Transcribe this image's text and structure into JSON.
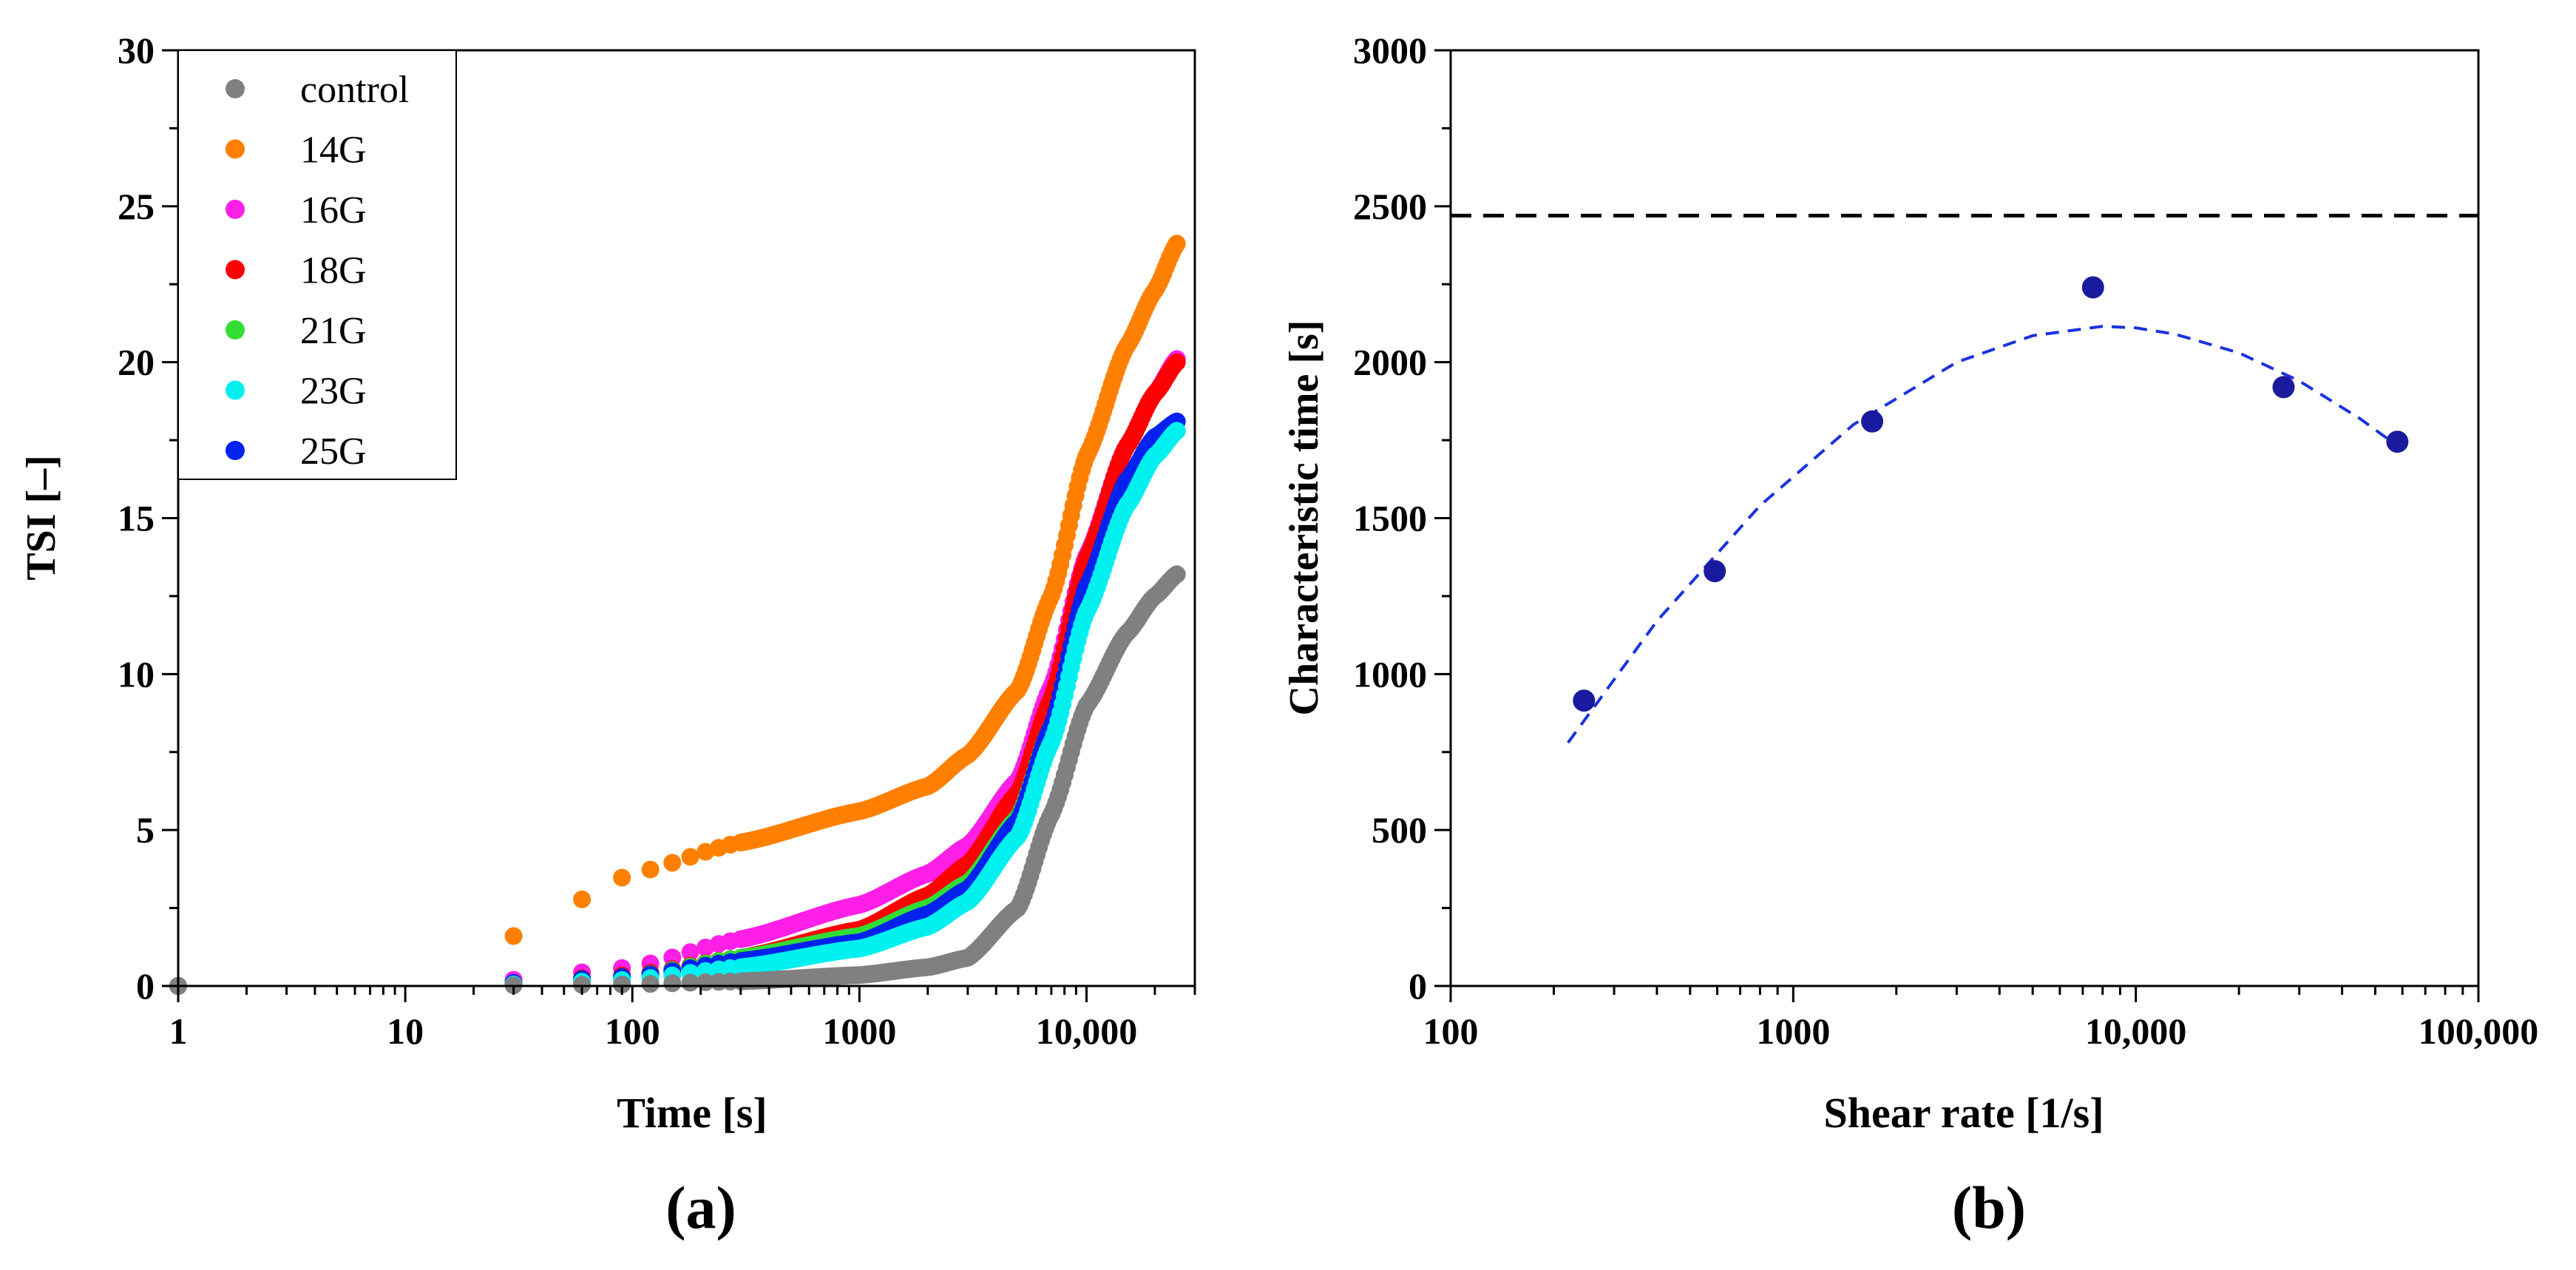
{
  "chart_data": [
    {
      "panel_label": "(a)",
      "type": "scatter",
      "xlabel": "Time [s]",
      "ylabel": "TSI [–]",
      "xscale": "log",
      "xlim": [
        1,
        30000
      ],
      "ylim": [
        0,
        30
      ],
      "x_ticks": [
        1,
        10,
        100,
        1000,
        10000
      ],
      "x_tick_labels": [
        "1",
        "10",
        "100",
        "1000",
        "10,000"
      ],
      "y_ticks": [
        0,
        5,
        10,
        15,
        20,
        25,
        30
      ],
      "y_tick_labels": [
        "0",
        "5",
        "10",
        "15",
        "20",
        "25",
        "30"
      ],
      "legend_position": "top-left",
      "grid": false,
      "curve_anchor_x": [
        1,
        30,
        100,
        300,
        1000,
        2000,
        3000,
        5000,
        7000,
        10000,
        15000,
        20000,
        25000
      ],
      "series": [
        {
          "name": "control",
          "color": "#808080",
          "anchors_y": [
            0,
            0.02,
            0.05,
            0.15,
            0.35,
            0.6,
            0.9,
            2.5,
            5.5,
            9.0,
            11.3,
            12.5,
            13.2
          ]
        },
        {
          "name": "14G",
          "color": "#FF8000",
          "anchors_y": [
            0,
            1.6,
            3.6,
            4.6,
            5.6,
            6.4,
            7.4,
            9.5,
            12.5,
            17.0,
            20.5,
            22.3,
            23.8
          ]
        },
        {
          "name": "16G",
          "color": "#FF1FE6",
          "anchors_y": [
            0,
            0.2,
            0.6,
            1.5,
            2.6,
            3.6,
            4.5,
            6.6,
            9.6,
            13.8,
            17.3,
            19.0,
            20.1
          ]
        },
        {
          "name": "18G",
          "color": "#FF0000",
          "anchors_y": [
            0,
            0.1,
            0.35,
            0.9,
            1.8,
            2.9,
            3.9,
            6.2,
            9.2,
            13.7,
            17.3,
            19.0,
            20.0
          ]
        },
        {
          "name": "21G",
          "color": "#33DD33",
          "anchors_y": [
            0,
            0.1,
            0.3,
            0.9,
            1.6,
            2.5,
            3.3,
            5.4,
            8.3,
            12.5,
            15.6,
            17.0,
            17.8
          ]
        },
        {
          "name": "23G",
          "color": "#00F0F0",
          "anchors_y": [
            0,
            0.05,
            0.2,
            0.6,
            1.2,
            1.9,
            2.7,
            4.8,
            7.8,
            12.0,
            15.4,
            17.0,
            17.8
          ]
        },
        {
          "name": "25G",
          "color": "#0022EE",
          "anchors_y": [
            0,
            0.1,
            0.3,
            0.8,
            1.4,
            2.3,
            3.1,
            5.3,
            8.3,
            12.8,
            16.2,
            17.6,
            18.1
          ]
        }
      ]
    },
    {
      "panel_label": "(b)",
      "type": "scatter",
      "xlabel": "Shear rate [1/s]",
      "ylabel": "Characteristic time [s]",
      "xscale": "log",
      "xlim": [
        100,
        100000
      ],
      "ylim": [
        0,
        3000
      ],
      "x_ticks": [
        100,
        1000,
        10000,
        100000
      ],
      "x_tick_labels": [
        "100",
        "1000",
        "10,000",
        "100,000"
      ],
      "y_ticks": [
        0,
        500,
        1000,
        1500,
        2000,
        2500,
        3000
      ],
      "y_tick_labels": [
        "0",
        "500",
        "1000",
        "1500",
        "2000",
        "2500",
        "3000"
      ],
      "grid": false,
      "points": {
        "color": "#1A1A9E",
        "x": [
          245,
          590,
          1700,
          7500,
          27000,
          58000
        ],
        "y": [
          915,
          1330,
          1810,
          2240,
          1920,
          1745
        ]
      },
      "reference_line": {
        "y": 2470,
        "style": "dashed",
        "color": "#000000"
      },
      "fit_curve": {
        "style": "dashed",
        "color": "#1A33DD",
        "x": [
          220,
          400,
          800,
          1500,
          3000,
          5000,
          8000,
          10000,
          13000,
          20000,
          30000,
          45000,
          60000
        ],
        "y": [
          780,
          1170,
          1540,
          1800,
          2000,
          2085,
          2115,
          2110,
          2090,
          2030,
          1940,
          1820,
          1720
        ]
      }
    }
  ]
}
